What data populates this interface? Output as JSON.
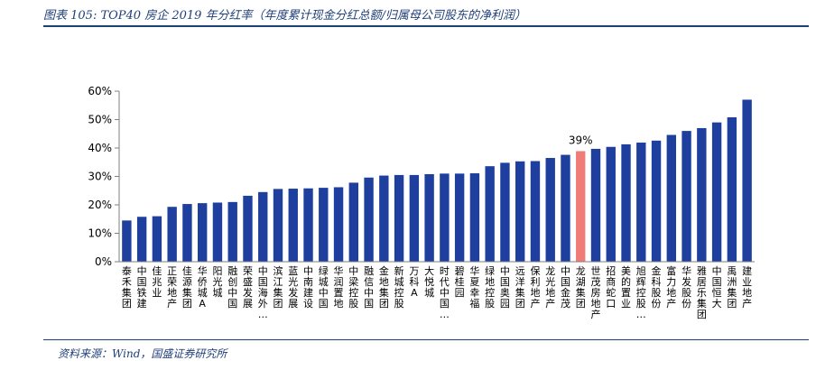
{
  "title": "图表 105:  TOP40 房企 2019 年分红率（年度累计现金分红总额/归属母公司股东的净利润）",
  "source": "资料来源：Wind，国盛证券研究所",
  "colors": {
    "bar": "#1f3f9e",
    "highlight": "#f07c78",
    "axis": "#7f7f7f",
    "title": "#1f3f7a"
  },
  "chart_data": {
    "type": "bar",
    "title": "",
    "xlabel": "",
    "ylabel": "",
    "ylim": [
      0,
      60
    ],
    "yticks": [
      0,
      10,
      20,
      30,
      40,
      50,
      60
    ],
    "ytick_labels": [
      "0%",
      "10%",
      "20%",
      "30%",
      "40%",
      "50%",
      "60%"
    ],
    "grid": false,
    "categories": [
      "泰禾集团",
      "中国铁建",
      "佳兆业",
      "正荣地产",
      "佳源集团",
      "华侨城A",
      "阳光城",
      "融创中国",
      "荣盛发展",
      "中国海外…",
      "滨江集团",
      "蓝光发展",
      "中南建设",
      "绿城中国",
      "华润置地",
      "中梁控股",
      "融信中国",
      "金地集团",
      "新城控股",
      "万科A",
      "大悦城",
      "时代中国…",
      "碧桂园",
      "华夏幸福",
      "绿地控股",
      "中国奥园",
      "远洋集团",
      "保利地产",
      "龙光地产",
      "中国金茂",
      "龙湖集团",
      "世茂房地产",
      "招商蛇口",
      "美的置业",
      "旭辉控股…",
      "金科股份",
      "富力地产",
      "华发股份",
      "雅居乐集团",
      "中国恒大",
      "禹洲集团",
      "建业地产"
    ],
    "values": [
      14.5,
      15.8,
      16.0,
      19.3,
      20.3,
      20.6,
      20.8,
      21.0,
      23.2,
      24.5,
      25.6,
      25.7,
      25.8,
      26.0,
      26.2,
      27.8,
      29.6,
      30.3,
      30.5,
      30.5,
      30.8,
      31.0,
      31.0,
      31.1,
      33.6,
      34.8,
      35.3,
      35.4,
      36.5,
      37.6,
      38.9,
      39.7,
      40.4,
      41.3,
      41.9,
      42.6,
      44.6,
      46.0,
      47.0,
      49.0,
      50.8,
      57.0
    ],
    "highlight_index": 30,
    "annotations": [
      {
        "category": "龙湖集团",
        "text": "39%"
      }
    ]
  }
}
